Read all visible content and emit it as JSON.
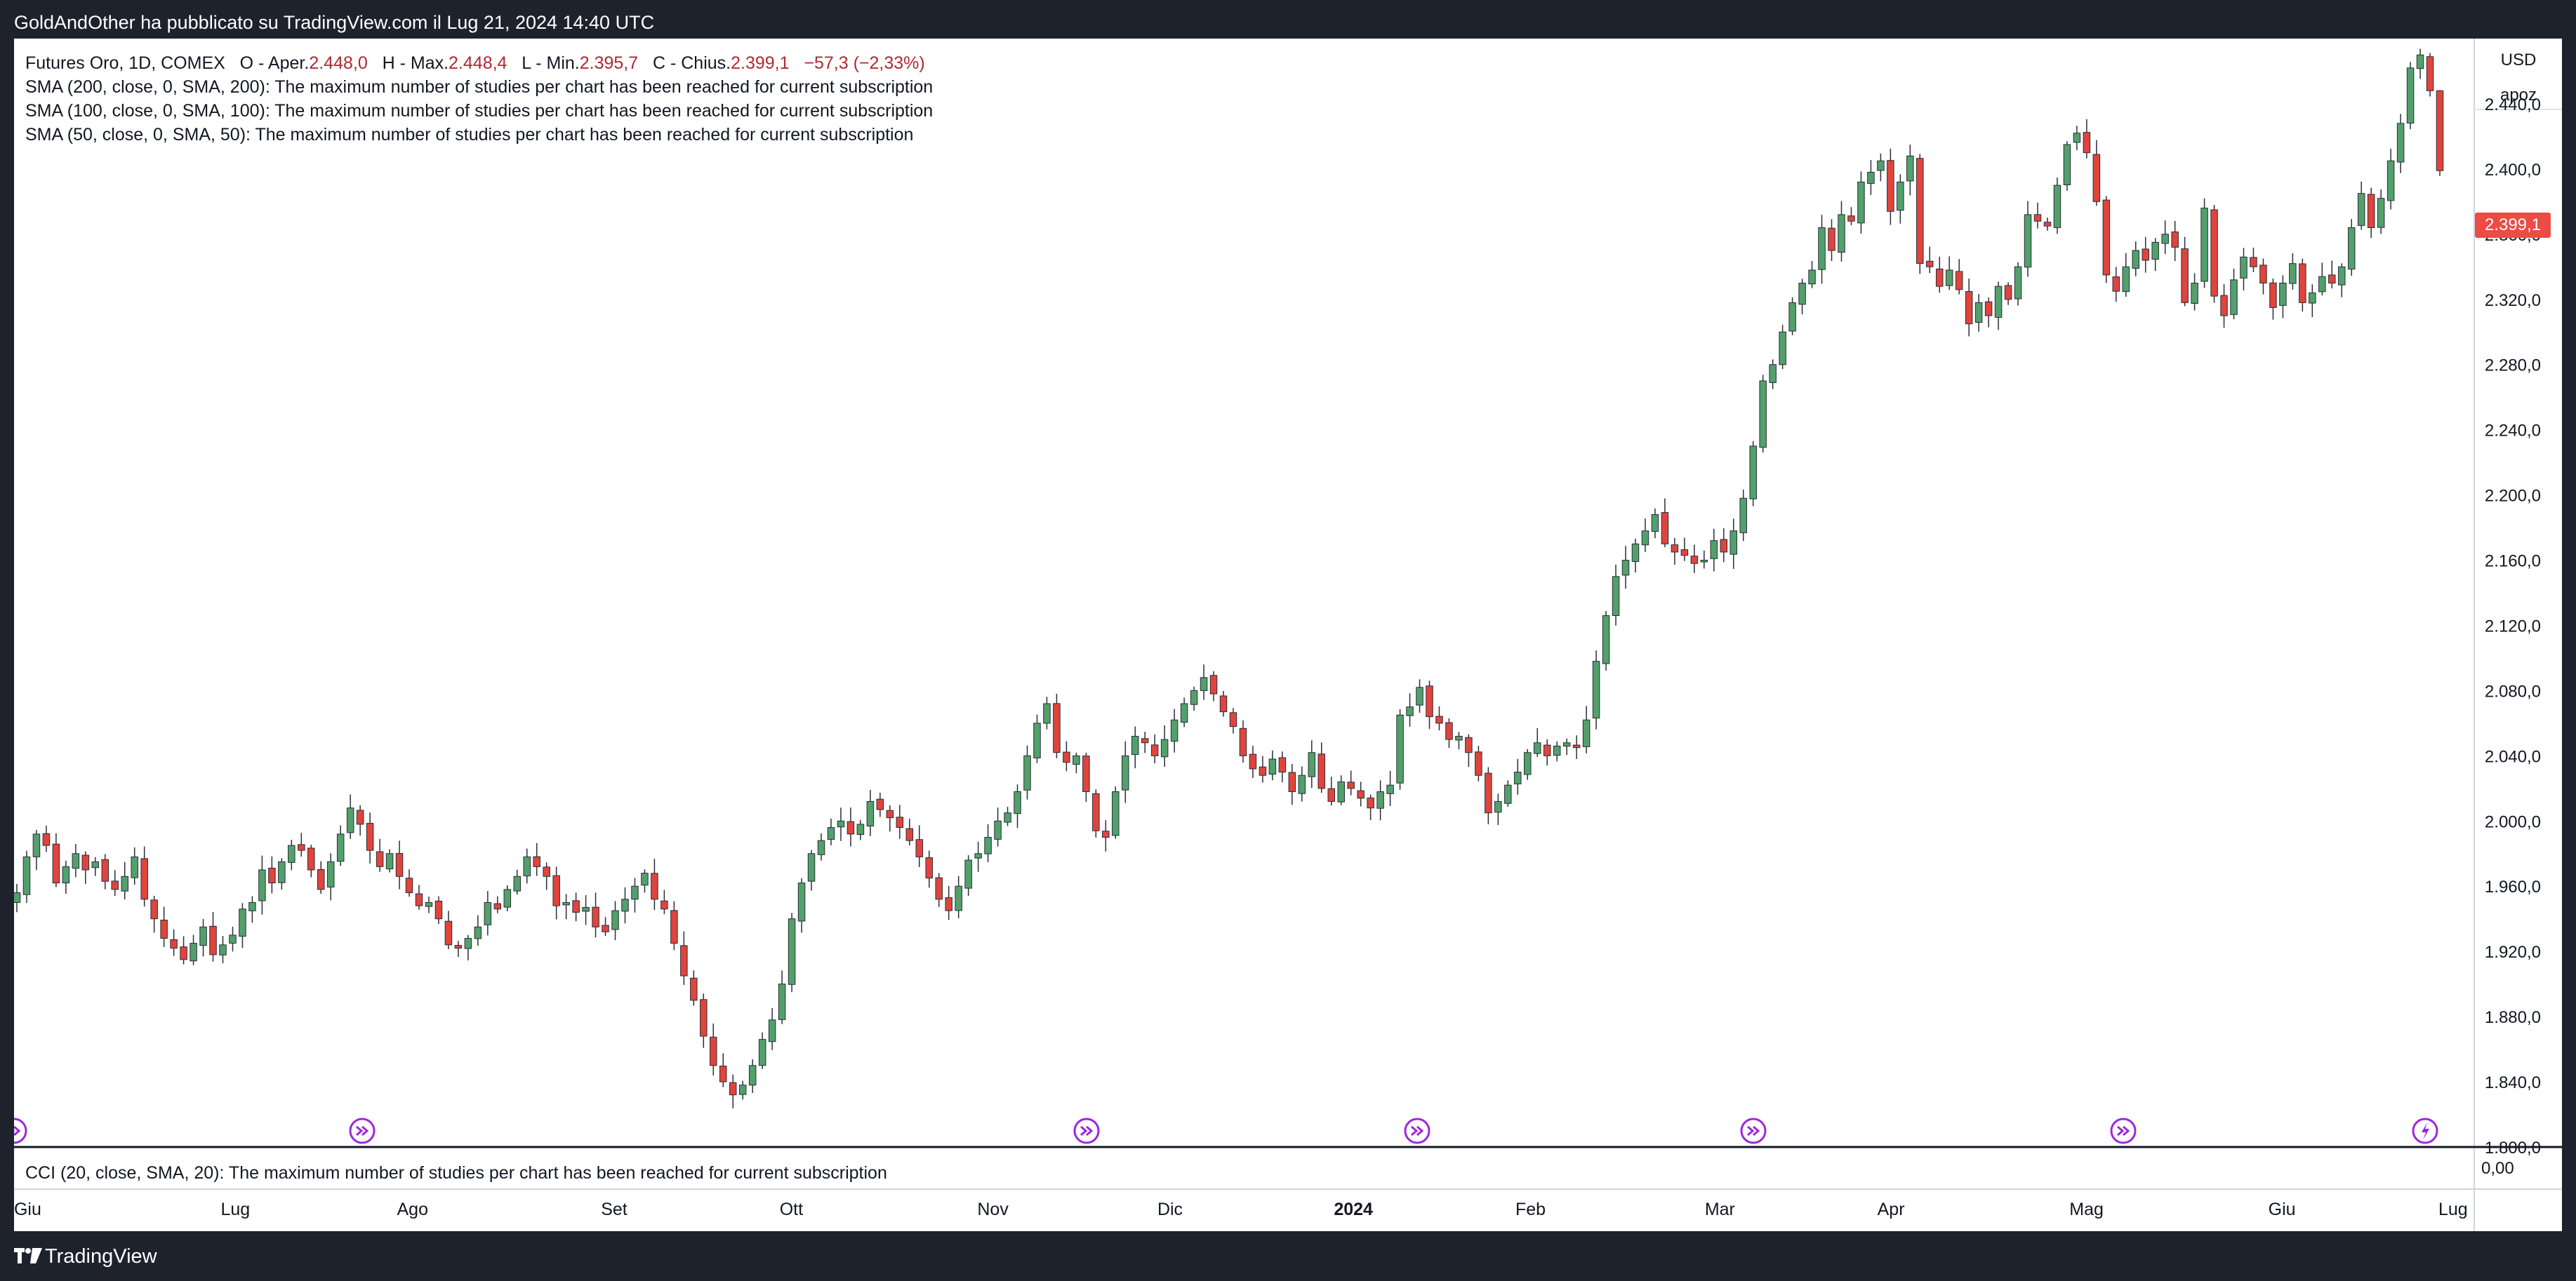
{
  "header": {
    "published_text": "GoldAndOther ha pubblicato su TradingView.com il Lug 21, 2024 14:40 UTC"
  },
  "legend": {
    "symbol": "Futures Oro, 1D, COMEX",
    "open_label": "O - Aper.",
    "open_value": "2.448,0",
    "high_label": "H - Max.",
    "high_value": "2.448,4",
    "low_label": "L - Min.",
    "low_value": "2.395,7",
    "close_label": "C - Chius.",
    "close_value": "2.399,1",
    "change_value": "−57,3 (−2,33%)",
    "studies": [
      "SMA (200, close, 0, SMA, 200): The maximum number of studies per chart has been reached for current subscription",
      "SMA (100, close, 0, SMA, 100): The maximum number of studies per chart has been reached for current subscription",
      "SMA (50, close, 0, SMA, 50): The maximum number of studies per chart has been reached for current subscription"
    ]
  },
  "cci": {
    "label": "CCI (20, close, SMA, 20): The maximum number of studies per chart has been reached for current subscription",
    "value_label": "0,00"
  },
  "price_axis": {
    "currency": "USD",
    "scale_mode": "apoz",
    "last_price": "2.399,1"
  },
  "colors": {
    "up": "#52a06b",
    "down": "#e0443c",
    "wick": "#2a2e39",
    "last_price_bg": "#ec4c44",
    "event_icon": "#9c27e0"
  },
  "footer": {
    "brand": "TradingView"
  },
  "chart_data": {
    "type": "candlestick",
    "x_start": "2023-06-20",
    "x_end": "2024-07-19",
    "ylim": [
      1800,
      2480
    ],
    "y_ticks": [
      {
        "value": 1800,
        "label": "1.800,0"
      },
      {
        "value": 1840,
        "label": "1.840,0"
      },
      {
        "value": 1880,
        "label": "1.880,0"
      },
      {
        "value": 1920,
        "label": "1.920,0"
      },
      {
        "value": 1960,
        "label": "1.960,0"
      },
      {
        "value": 2000,
        "label": "2.000,0"
      },
      {
        "value": 2040,
        "label": "2.040,0"
      },
      {
        "value": 2080,
        "label": "2.080,0"
      },
      {
        "value": 2120,
        "label": "2.120,0"
      },
      {
        "value": 2160,
        "label": "2.160,0"
      },
      {
        "value": 2200,
        "label": "2.200,0"
      },
      {
        "value": 2240,
        "label": "2.240,0"
      },
      {
        "value": 2280,
        "label": "2.280,0"
      },
      {
        "value": 2320,
        "label": "2.320,0"
      },
      {
        "value": 2360,
        "label": "2.360,0"
      },
      {
        "value": 2400,
        "label": "2.400,0"
      },
      {
        "value": 2440,
        "label": "2.440,0"
      }
    ],
    "x_ticks": [
      {
        "date": "2023-06-22",
        "label": "Giu",
        "bold": false
      },
      {
        "date": "2023-07-26",
        "label": "Lug",
        "bold": false
      },
      {
        "date": "2023-08-24",
        "label": "Ago",
        "bold": false
      },
      {
        "date": "2023-09-26",
        "label": "Set",
        "bold": false
      },
      {
        "date": "2023-10-25",
        "label": "Ott",
        "bold": false
      },
      {
        "date": "2023-11-27",
        "label": "Nov",
        "bold": false
      },
      {
        "date": "2023-12-26",
        "label": "Dic",
        "bold": false
      },
      {
        "date": "2024-01-25",
        "label": "2024",
        "bold": true
      },
      {
        "date": "2024-02-23",
        "label": "Feb",
        "bold": false
      },
      {
        "date": "2024-03-25",
        "label": "Mar",
        "bold": false
      },
      {
        "date": "2024-04-22",
        "label": "Apr",
        "bold": false
      },
      {
        "date": "2024-05-24",
        "label": "Mag",
        "bold": false
      },
      {
        "date": "2024-06-25",
        "label": "Giu",
        "bold": false
      },
      {
        "date": "2024-07-23",
        "label": "Lug",
        "bold": false
      }
    ],
    "closes": [
      1956,
      1978,
      1992,
      1985,
      1962,
      1972,
      1980,
      1970,
      1975,
      1963,
      1958,
      1966,
      1978,
      1952,
      1940,
      1928,
      1922,
      1915,
      1925,
      1935,
      1918,
      1924,
      1930,
      1946,
      1950,
      1970,
      1962,
      1975,
      1985,
      1982,
      1970,
      1958,
      1975,
      1992,
      2008,
      1998,
      1982,
      1972,
      1980,
      1966,
      1956,
      1948,
      1950,
      1940,
      1924,
      1922,
      1928,
      1935,
      1950,
      1946,
      1958,
      1966,
      1978,
      1972,
      1966,
      1948,
      1950,
      1944,
      1947,
      1935,
      1932,
      1945,
      1952,
      1960,
      1968,
      1952,
      1946,
      1925,
      1905,
      1890,
      1868,
      1850,
      1840,
      1832,
      1838,
      1850,
      1866,
      1878,
      1900,
      1940,
      1962,
      1980,
      1988,
      1996,
      2000,
      1992,
      1998,
      2012,
      2007,
      2002,
      1996,
      1988,
      1978,
      1965,
      1952,
      1945,
      1960,
      1976,
      1980,
      1990,
      2000,
      2005,
      2018,
      2040,
      2060,
      2072,
      2042,
      2036,
      2040,
      2018,
      1994,
      1990,
      2018,
      2040,
      2052,
      2048,
      2040,
      2050,
      2062,
      2072,
      2080,
      2088,
      2078,
      2067,
      2058,
      2040,
      2032,
      2028,
      2038,
      2030,
      2018,
      2028,
      2042,
      2020,
      2012,
      2024,
      2020,
      2014,
      2008,
      2018,
      2022,
      2065,
      2070,
      2082,
      2064,
      2060,
      2050,
      2052,
      2042,
      2028,
      2005,
      2012,
      2022,
      2030,
      2042,
      2048,
      2040,
      2046,
      2048,
      2045,
      2062,
      2098,
      2126,
      2150,
      2160,
      2170,
      2178,
      2188,
      2170,
      2165,
      2163,
      2158,
      2160,
      2172,
      2165,
      2178,
      2198,
      2230,
      2270,
      2280,
      2300,
      2318,
      2330,
      2338,
      2364,
      2350,
      2372,
      2368,
      2392,
      2398,
      2405,
      2374,
      2392,
      2408,
      2342,
      2340,
      2328,
      2338,
      2326,
      2305,
      2318,
      2310,
      2328,
      2320,
      2340,
      2372,
      2368,
      2365,
      2390,
      2415,
      2422,
      2410,
      2380,
      2335,
      2325,
      2340,
      2350,
      2344,
      2355,
      2360,
      2352,
      2318,
      2330,
      2376,
      2322,
      2310,
      2332,
      2346,
      2340,
      2330,
      2315,
      2330,
      2342,
      2318,
      2324,
      2334,
      2330,
      2340,
      2364,
      2385,
      2364,
      2382,
      2405,
      2428,
      2462,
      2470,
      2448,
      2399
    ]
  }
}
